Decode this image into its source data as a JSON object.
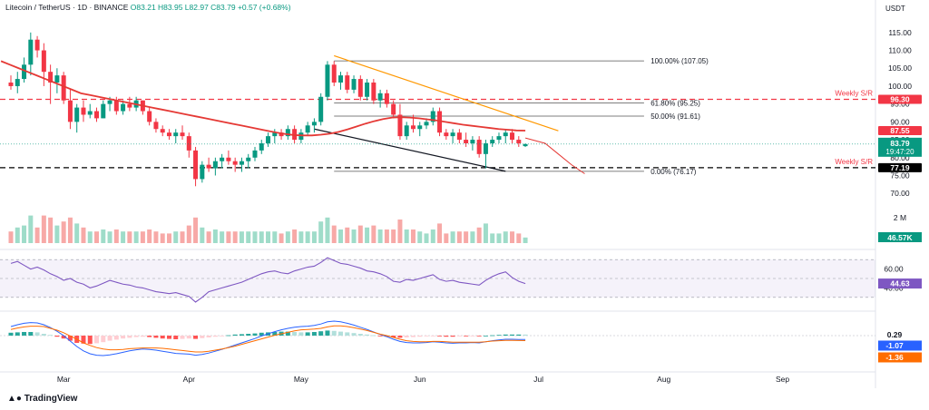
{
  "header": {
    "symbol": "Litecoin / TetherUS · 1D · BINANCE",
    "ohlc": "O83.21 H83.95 L82.97 C83.79 +0.57 (+0.68%)"
  },
  "currency": "USDT",
  "brand": "TradingView",
  "colors": {
    "up": "#089981",
    "down": "#f23645",
    "ma": "#e53935",
    "trend_top": "#ff9800",
    "rsi": "#7e57c2",
    "macd": "#2962ff",
    "signal": "#ff6d00"
  },
  "chart_data": [
    {
      "type": "candlestick",
      "title": "Litecoin / TetherUS · 1D · BINANCE",
      "y_axis_ticks": [
        70,
        75,
        80,
        85,
        90,
        95,
        100,
        105,
        110,
        115
      ],
      "ylim": [
        67,
        118
      ],
      "x_axis_ticks": [
        "Mar",
        "Apr",
        "May",
        "Jun",
        "Jul",
        "Aug",
        "Sep"
      ],
      "price_labels": {
        "last": "83.79",
        "countdown": "19:47:20",
        "ma": "87.55",
        "weekly_upper": "96.30",
        "weekly_lower": "77.19"
      },
      "fib_levels": [
        {
          "label": "100.00% (107.05)",
          "value": 107.05
        },
        {
          "label": "61.80% (95.25)",
          "value": 95.25
        },
        {
          "label": "50.00% (91.61)",
          "value": 91.61
        },
        {
          "label": "0.00% (76.17)",
          "value": 76.17
        }
      ],
      "horizontal_levels": [
        {
          "label": "Weekly S/R",
          "value": 96.3,
          "style": "dashed",
          "color": "#f23645"
        },
        {
          "label": "Weekly S/R",
          "value": 77.19,
          "style": "dashed",
          "color": "#000000"
        }
      ],
      "volume_label": "2 M",
      "volume_last": "46.57K",
      "candles": [
        [
          101,
          103,
          99,
          100
        ],
        [
          100,
          104,
          98,
          102
        ],
        [
          102,
          108,
          101,
          106
        ],
        [
          106,
          115,
          103,
          113
        ],
        [
          113,
          114,
          108,
          110
        ],
        [
          110,
          112,
          100,
          104
        ],
        [
          104,
          106,
          95,
          101
        ],
        [
          101,
          105,
          98,
          103
        ],
        [
          103,
          104,
          95,
          96
        ],
        [
          96,
          99,
          88,
          90
        ],
        [
          90,
          95,
          87,
          94
        ],
        [
          94,
          96,
          90,
          92
        ],
        [
          92,
          95,
          91,
          93
        ],
        [
          93,
          94,
          90,
          91
        ],
        [
          91,
          96,
          91,
          95
        ],
        [
          95,
          97,
          93,
          96
        ],
        [
          96,
          97,
          92,
          93
        ],
        [
          93,
          96,
          92,
          95
        ],
        [
          95,
          97,
          93,
          94
        ],
        [
          94,
          97,
          93,
          96
        ],
        [
          96,
          96,
          92,
          93
        ],
        [
          93,
          94,
          89,
          90
        ],
        [
          90,
          91,
          87,
          88
        ],
        [
          88,
          89,
          86,
          87
        ],
        [
          87,
          88,
          85,
          86
        ],
        [
          86,
          88,
          84,
          87
        ],
        [
          87,
          89,
          85,
          86
        ],
        [
          86,
          87,
          80,
          82
        ],
        [
          82,
          83,
          72,
          74
        ],
        [
          74,
          79,
          73,
          78
        ],
        [
          78,
          80,
          76,
          77
        ],
        [
          77,
          80,
          75,
          79
        ],
        [
          79,
          81,
          77,
          80
        ],
        [
          80,
          82,
          78,
          79
        ],
        [
          79,
          80,
          76,
          78
        ],
        [
          78,
          80,
          76,
          79
        ],
        [
          79,
          81,
          77,
          80
        ],
        [
          80,
          83,
          79,
          82
        ],
        [
          82,
          85,
          81,
          84
        ],
        [
          84,
          87,
          83,
          86
        ],
        [
          86,
          88,
          84,
          87
        ],
        [
          87,
          88,
          85,
          86
        ],
        [
          86,
          89,
          85,
          88
        ],
        [
          88,
          89,
          84,
          85
        ],
        [
          85,
          88,
          84,
          87
        ],
        [
          87,
          90,
          86,
          89
        ],
        [
          89,
          91,
          87,
          90
        ],
        [
          90,
          98,
          89,
          97
        ],
        [
          97,
          107,
          96,
          106
        ],
        [
          106,
          107,
          100,
          101
        ],
        [
          101,
          104,
          99,
          103
        ],
        [
          103,
          104,
          98,
          99
        ],
        [
          99,
          103,
          98,
          102
        ],
        [
          102,
          103,
          96,
          97
        ],
        [
          97,
          102,
          96,
          101
        ],
        [
          101,
          102,
          95,
          96
        ],
        [
          96,
          99,
          94,
          98
        ],
        [
          98,
          99,
          94,
          95
        ],
        [
          95,
          96,
          91,
          92
        ],
        [
          92,
          95,
          85,
          86
        ],
        [
          86,
          90,
          85,
          89
        ],
        [
          89,
          92,
          87,
          88
        ],
        [
          88,
          90,
          86,
          89
        ],
        [
          89,
          91,
          88,
          90
        ],
        [
          90,
          94,
          89,
          93
        ],
        [
          93,
          94,
          86,
          87
        ],
        [
          87,
          88,
          85,
          86
        ],
        [
          86,
          88,
          84,
          87
        ],
        [
          87,
          88,
          84,
          85
        ],
        [
          85,
          87,
          83,
          84
        ],
        [
          84,
          86,
          82,
          85
        ],
        [
          85,
          86,
          80,
          81
        ],
        [
          81,
          85,
          77,
          84
        ],
        [
          84,
          86,
          83,
          85
        ],
        [
          85,
          87,
          84,
          86
        ],
        [
          86,
          88,
          84,
          87
        ],
        [
          87,
          88,
          84,
          85
        ],
        [
          85,
          86,
          83,
          84
        ],
        [
          83.21,
          83.95,
          82.97,
          83.79
        ]
      ],
      "ma_series": [
        107,
        106,
        105,
        104,
        103,
        102,
        101,
        100,
        99,
        98,
        97.5,
        97,
        96.5,
        96,
        95.5,
        95,
        94.5,
        94,
        93.5,
        93,
        92.5,
        92,
        91.5,
        91,
        90.5,
        90,
        89.5,
        89,
        88.5,
        88,
        87.5,
        87,
        86.6,
        86.3,
        86.2,
        86.2,
        86.4,
        86.7,
        87.2,
        87.9,
        88.7,
        89.5,
        90.2,
        90.8,
        91.2,
        91.3,
        91.2,
        91,
        90.7,
        90.4,
        90,
        89.6,
        89.2,
        88.9,
        88.6,
        88.3,
        88,
        87.8,
        87.6,
        87.55
      ],
      "projection": [
        [
          0,
          85.5
        ],
        [
          3,
          84
        ],
        [
          5,
          81
        ],
        [
          7,
          78
        ],
        [
          9,
          75.5
        ]
      ]
    },
    {
      "type": "line",
      "title": "RSI",
      "y_ticks": [
        60,
        40
      ],
      "last_value": "44.63",
      "values": [
        66,
        68,
        64,
        60,
        62,
        59,
        55,
        52,
        48,
        50,
        46,
        44,
        40,
        42,
        45,
        48,
        46,
        44,
        43,
        41,
        40,
        38,
        36,
        35,
        34,
        35,
        33,
        31,
        25,
        30,
        36,
        38,
        40,
        42,
        44,
        46,
        49,
        52,
        55,
        57,
        58,
        56,
        55,
        58,
        60,
        62,
        63,
        67,
        72,
        69,
        66,
        65,
        63,
        61,
        58,
        57,
        55,
        52,
        47,
        46,
        49,
        48,
        50,
        52,
        54,
        49,
        47,
        48,
        46,
        45,
        44,
        43,
        48,
        52,
        55,
        57,
        51,
        47,
        44.63
      ]
    },
    {
      "type": "bar",
      "title": "MACD",
      "last_values": [
        "0.29",
        "-1.07",
        "-1.36"
      ],
      "histogram": [
        0.8,
        0.9,
        1.0,
        1.0,
        0.9,
        0.5,
        0.2,
        -0.3,
        -0.8,
        -1.4,
        -2.0,
        -2.2,
        -2.3,
        -2.1,
        -1.8,
        -1.4,
        -1.1,
        -0.8,
        -0.6,
        -0.4,
        -0.3,
        -0.4,
        -0.6,
        -0.8,
        -0.9,
        -1.0,
        -0.9,
        -0.8,
        -0.9,
        -0.7,
        -0.5,
        -0.3,
        -0.1,
        0.1,
        0.3,
        0.4,
        0.5,
        0.6,
        0.8,
        0.9,
        1.0,
        1.1,
        1.1,
        1.0,
        0.9,
        0.9,
        1.0,
        1.2,
        1.4,
        1.3,
        1.1,
        0.9,
        0.7,
        0.5,
        0.3,
        0.1,
        -0.1,
        -0.3,
        -0.5,
        -0.6,
        -0.5,
        -0.4,
        -0.3,
        -0.2,
        -0.1,
        -0.2,
        -0.3,
        -0.3,
        -0.2,
        -0.2,
        -0.1,
        -0.2,
        0.0,
        0.1,
        0.2,
        0.3,
        0.3,
        0.3,
        0.29
      ],
      "macd_line": [
        2.5,
        3.0,
        3.4,
        3.6,
        3.5,
        3.0,
        2.2,
        1.2,
        0.0,
        -1.5,
        -3.0,
        -4.2,
        -5.0,
        -5.4,
        -5.5,
        -5.3,
        -5.0,
        -4.6,
        -4.2,
        -3.9,
        -3.7,
        -3.8,
        -4.0,
        -4.3,
        -4.6,
        -4.9,
        -5.0,
        -5.1,
        -5.4,
        -5.2,
        -4.8,
        -4.3,
        -3.8,
        -3.2,
        -2.6,
        -2.0,
        -1.4,
        -0.8,
        -0.1,
        0.5,
        1.1,
        1.6,
        2.0,
        2.3,
        2.5,
        2.6,
        2.8,
        3.2,
        3.8,
        4.0,
        3.8,
        3.4,
        2.9,
        2.3,
        1.7,
        1.0,
        0.3,
        -0.3,
        -1.0,
        -1.6,
        -1.9,
        -2.0,
        -2.0,
        -1.9,
        -1.7,
        -1.8,
        -2.0,
        -2.1,
        -2.0,
        -2.0,
        -1.9,
        -2.0,
        -1.7,
        -1.4,
        -1.2,
        -1.0,
        -1.0,
        -1.05,
        -1.07
      ],
      "signal_line": [
        1.7,
        2.1,
        2.4,
        2.6,
        2.6,
        2.5,
        2.0,
        1.5,
        0.8,
        -0.1,
        -1.0,
        -2.0,
        -2.7,
        -3.3,
        -3.7,
        -3.9,
        -3.9,
        -3.8,
        -3.6,
        -3.5,
        -3.4,
        -3.4,
        -3.4,
        -3.5,
        -3.7,
        -3.9,
        -4.1,
        -4.3,
        -4.5,
        -4.5,
        -4.3,
        -4.0,
        -3.7,
        -3.3,
        -2.9,
        -2.4,
        -1.9,
        -1.4,
        -0.9,
        -0.4,
        0.1,
        0.5,
        0.9,
        1.3,
        1.6,
        1.7,
        1.8,
        2.0,
        2.4,
        2.7,
        2.7,
        2.5,
        2.2,
        1.8,
        1.4,
        0.9,
        0.4,
        0.0,
        -0.5,
        -1.0,
        -1.4,
        -1.6,
        -1.7,
        -1.7,
        -1.6,
        -1.6,
        -1.7,
        -1.8,
        -1.8,
        -1.8,
        -1.8,
        -1.8,
        -1.7,
        -1.5,
        -1.4,
        -1.3,
        -1.3,
        -1.35,
        -1.36
      ]
    }
  ]
}
